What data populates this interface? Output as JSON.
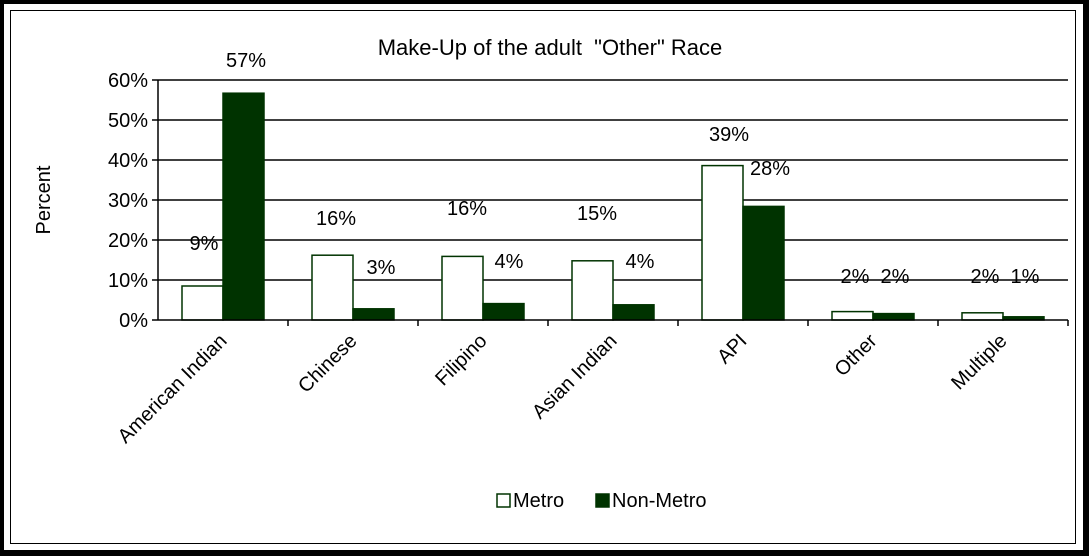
{
  "chart_data": {
    "type": "bar",
    "title": "Make-Up of the adult  \"Other\" Race",
    "ylabel": "Percent",
    "xlabel": "",
    "ylim": [
      0,
      60
    ],
    "yticks": [
      0,
      10,
      20,
      30,
      40,
      50,
      60
    ],
    "ytick_labels": [
      "0%",
      "10%",
      "20%",
      "30%",
      "40%",
      "50%",
      "60%"
    ],
    "grid": true,
    "legend_position": "bottom",
    "categories": [
      "American Indian",
      "Chinese",
      "Filipino",
      "Asian Indian",
      "API",
      "Other",
      "Multiple"
    ],
    "series": [
      {
        "name": "Metro",
        "color": "#ffffff",
        "values": [
          8.5,
          16.2,
          15.9,
          14.8,
          38.6,
          2.1,
          1.8
        ],
        "labels": [
          "9%",
          "16%",
          "16%",
          "15%",
          "39%",
          "2%",
          "2%"
        ]
      },
      {
        "name": "Non-Metro",
        "color": "#003300",
        "values": [
          56.7,
          2.8,
          4.1,
          3.8,
          28.4,
          1.6,
          0.8
        ],
        "labels": [
          "57%",
          "3%",
          "4%",
          "4%",
          "28%",
          "2%",
          "1%"
        ]
      }
    ]
  }
}
